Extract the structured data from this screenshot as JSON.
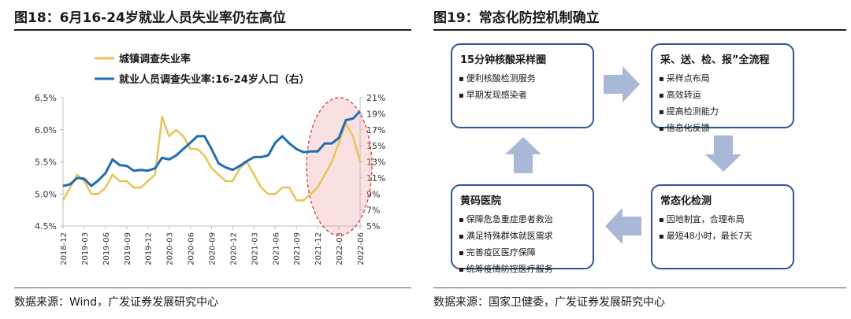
{
  "left": {
    "title": "图18：6月16-24岁就业人员失业率仍在高位",
    "source": "数据来源：Wind，广发证券发展研究中心"
  },
  "right": {
    "title": "图19：常态化防控机制确立",
    "source": "数据来源：国家卫健委，广发证券发展研究中心",
    "boxes": [
      {
        "title": "15分钟核酸采样圈",
        "items": [
          "便利核酸检测服务",
          "早期发现感染者"
        ]
      },
      {
        "title": "采、送、检、报”全流程",
        "items": [
          "采样点布局",
          "高效转运",
          "提高检测能力",
          "信息化反馈"
        ]
      },
      {
        "title": "常态化检测",
        "items": [
          "因地制宜，合理布局",
          "最短48小时，最长7天"
        ]
      },
      {
        "title": "黄码医院",
        "items": [
          "保障危急重症患者救治",
          "满足特殊群体就医需求",
          "完善疫区医疗保障",
          "统筹疫情防控医疗服务"
        ]
      }
    ],
    "arrow_color": "#aab8d8"
  },
  "chart_data": {
    "type": "line",
    "x": [
      "2018-12",
      "2019-01",
      "2019-02",
      "2019-03",
      "2019-04",
      "2019-05",
      "2019-06",
      "2019-07",
      "2019-08",
      "2019-09",
      "2019-10",
      "2019-11",
      "2019-12",
      "2020-01",
      "2020-02",
      "2020-03",
      "2020-04",
      "2020-05",
      "2020-06",
      "2020-07",
      "2020-08",
      "2020-09",
      "2020-10",
      "2020-11",
      "2020-12",
      "2021-01",
      "2021-02",
      "2021-03",
      "2021-04",
      "2021-05",
      "2021-06",
      "2021-07",
      "2021-08",
      "2021-09",
      "2021-10",
      "2021-11",
      "2021-12",
      "2022-01",
      "2022-02",
      "2022-03",
      "2022-04",
      "2022-05",
      "2022-06"
    ],
    "xticks": [
      "2018-12",
      "2019-03",
      "2019-06",
      "2019-09",
      "2019-12",
      "2020-03",
      "2020-06",
      "2020-09",
      "2020-12",
      "2021-03",
      "2021-06",
      "2021-09",
      "2021-12",
      "2022-03",
      "2022-06"
    ],
    "series": [
      {
        "name": "城镇调查失业率",
        "axis": "left",
        "color": "#e8c55c",
        "values": [
          4.9,
          5.1,
          5.3,
          5.2,
          5.0,
          5.0,
          5.1,
          5.3,
          5.2,
          5.2,
          5.1,
          5.1,
          5.2,
          5.3,
          6.2,
          5.9,
          6.0,
          5.9,
          5.7,
          5.7,
          5.6,
          5.4,
          5.3,
          5.2,
          5.2,
          5.4,
          5.5,
          5.3,
          5.1,
          5.0,
          5.0,
          5.1,
          5.1,
          4.9,
          4.9,
          5.0,
          5.1,
          5.3,
          5.5,
          5.8,
          6.1,
          5.9,
          5.5
        ]
      },
      {
        "name": "就业人员调查失业率:16-24岁人口（右）",
        "axis": "right",
        "color": "#1f6db5",
        "values": [
          10.0,
          10.2,
          11.0,
          10.9,
          10.0,
          10.7,
          11.6,
          13.3,
          12.6,
          12.5,
          11.9,
          12.0,
          11.9,
          12.2,
          13.5,
          13.3,
          13.8,
          14.6,
          15.4,
          16.2,
          16.2,
          14.6,
          12.8,
          12.3,
          12.0,
          12.5,
          13.1,
          13.6,
          13.6,
          13.8,
          15.4,
          16.2,
          15.3,
          14.6,
          14.2,
          14.3,
          14.3,
          15.3,
          15.3,
          16.0,
          18.2,
          18.4,
          19.3
        ]
      }
    ],
    "y_left": {
      "min": 4.5,
      "max": 6.5,
      "ticks": [
        "4.5%",
        "5.0%",
        "5.5%",
        "6.0%",
        "6.5%"
      ]
    },
    "y_right": {
      "min": 5,
      "max": 21,
      "ticks": [
        "5%",
        "7%",
        "9%",
        "11%",
        "13%",
        "15%",
        "17%",
        "19%",
        "21%"
      ]
    },
    "legend_position": "top-left",
    "grid": false
  }
}
